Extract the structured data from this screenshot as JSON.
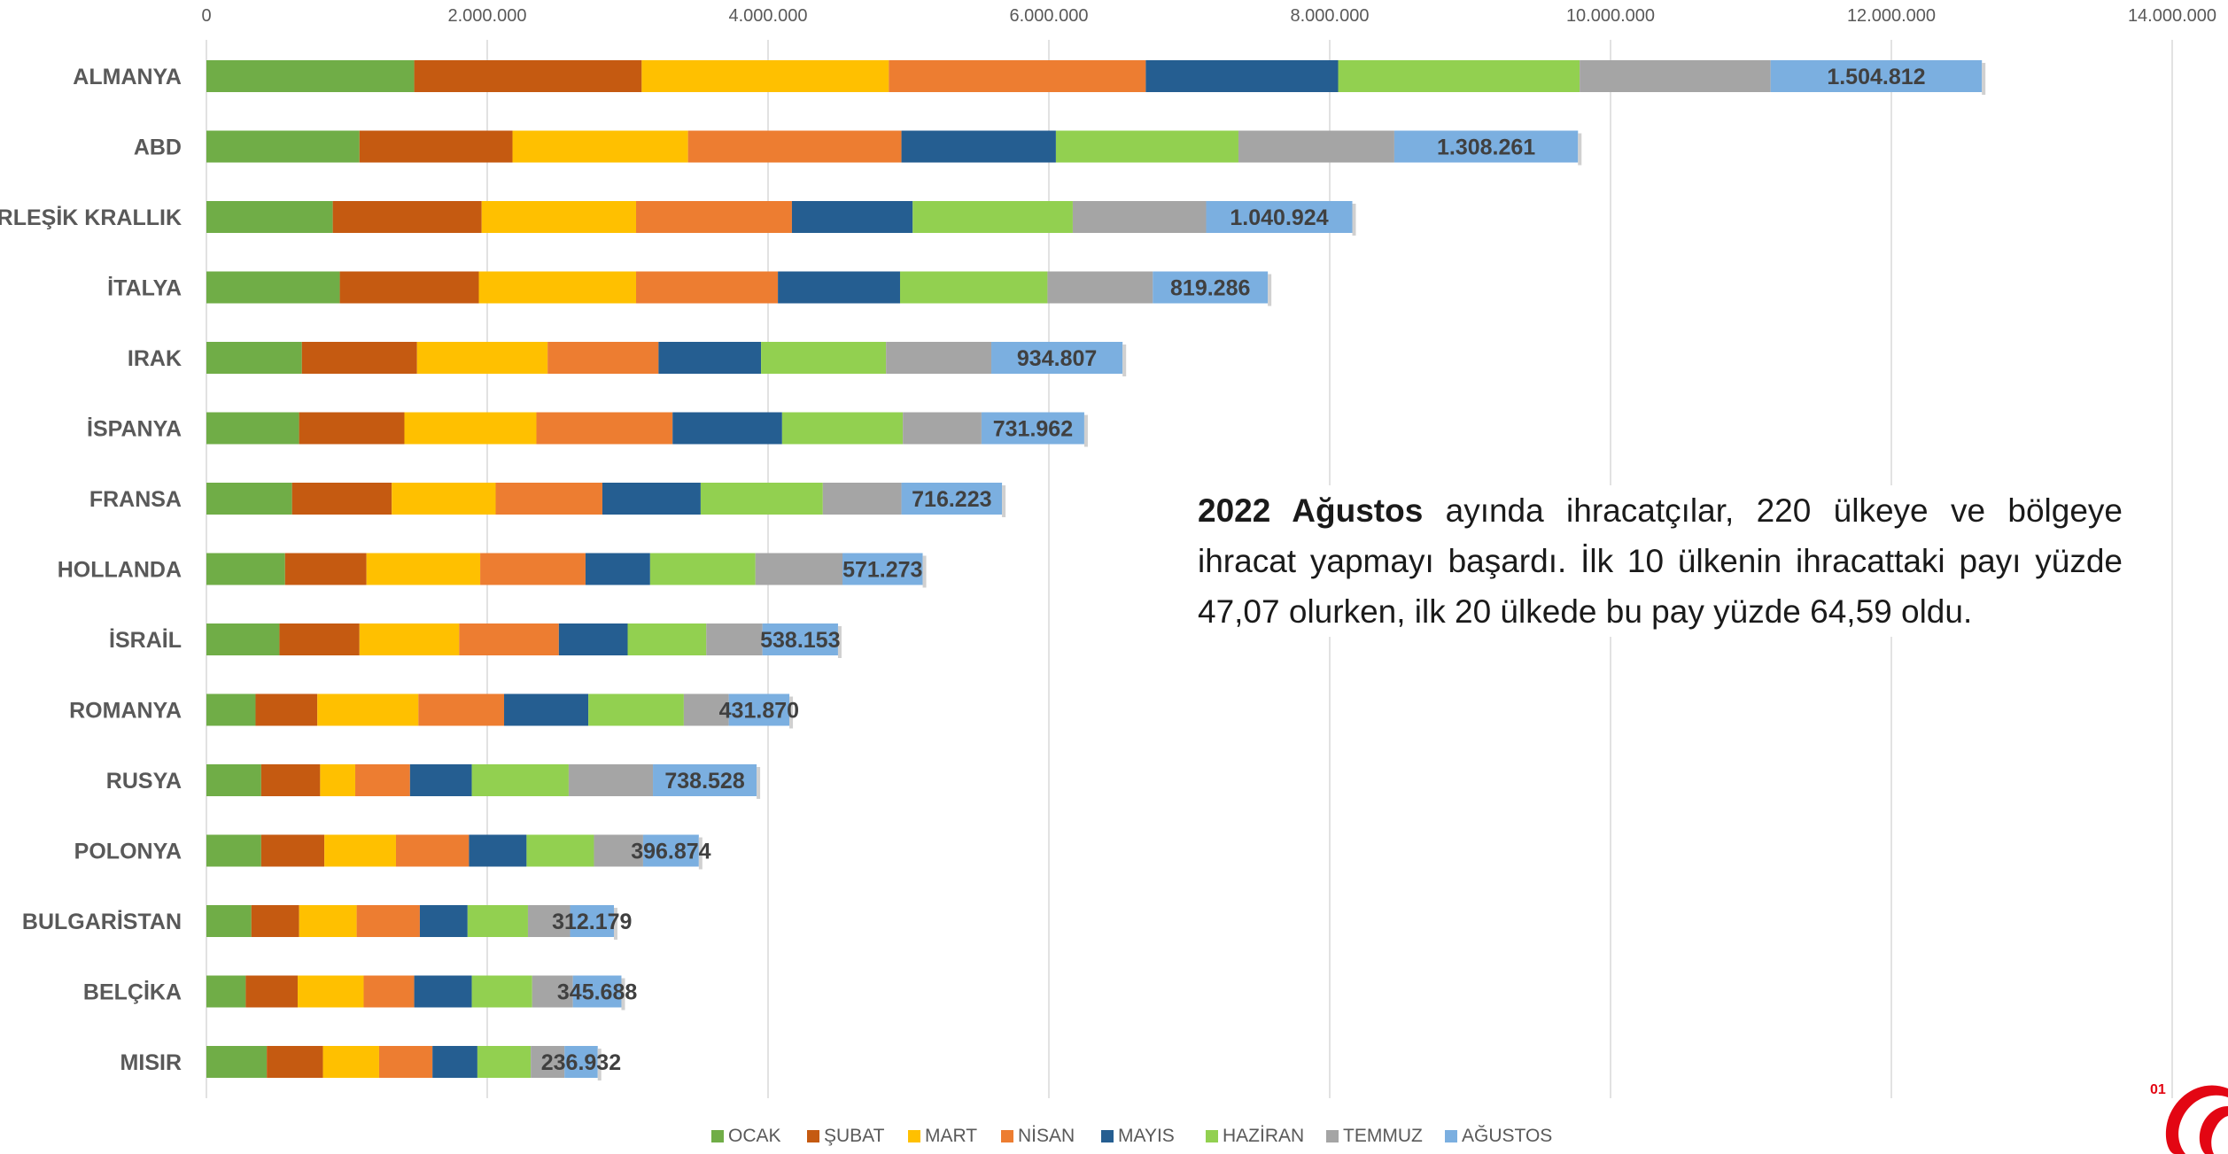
{
  "note": {
    "bold": "2022 Ağustos",
    "text": " ayında ihracatçılar, 220 ülkeye ve bölgeye ihracat yapmayı başardı. İlk 10 ülkenin ihracattaki payı yüzde 47,07 olurken, ilk 20 ülkede bu pay yüzde 64,59 oldu."
  },
  "logo": {
    "number": "01",
    "color": "#e30613"
  },
  "chart_data": {
    "type": "bar",
    "orientation": "horizontal",
    "stacked": true,
    "categories": [
      "ALMANYA",
      "ABD",
      "BİRLEŞİK KRALLIK",
      "İTALYA",
      "IRAK",
      "İSPANYA",
      "FRANSA",
      "HOLLANDA",
      "İSRAİL",
      "ROMANYA",
      "RUSYA",
      "POLONYA",
      "BULGARİSTAN",
      "BELÇİKA",
      "MISIR"
    ],
    "series": [
      {
        "name": "OCAK",
        "color": "#70ad47",
        "values": [
          1480000,
          1090000,
          900000,
          950000,
          680000,
          660000,
          610000,
          560000,
          520000,
          350000,
          390000,
          390000,
          320000,
          280000,
          430000
        ]
      },
      {
        "name": "ŞUBAT",
        "color": "#c55a11",
        "values": [
          1620000,
          1090000,
          1060000,
          990000,
          820000,
          750000,
          710000,
          580000,
          570000,
          440000,
          420000,
          450000,
          340000,
          370000,
          400000
        ]
      },
      {
        "name": "MART",
        "color": "#ffc000",
        "values": [
          1760000,
          1250000,
          1100000,
          1120000,
          930000,
          940000,
          740000,
          810000,
          710000,
          720000,
          250000,
          510000,
          410000,
          470000,
          400000
        ]
      },
      {
        "name": "NİSAN",
        "color": "#ed7d31",
        "values": [
          1830000,
          1520000,
          1110000,
          1010000,
          790000,
          970000,
          760000,
          750000,
          710000,
          610000,
          390000,
          520000,
          450000,
          360000,
          380000
        ]
      },
      {
        "name": "MAYIS",
        "color": "#255e91",
        "values": [
          1370000,
          1100000,
          860000,
          870000,
          730000,
          780000,
          700000,
          460000,
          490000,
          600000,
          440000,
          410000,
          340000,
          410000,
          320000
        ]
      },
      {
        "name": "HAZİRAN",
        "color": "#92d050",
        "values": [
          1720000,
          1300000,
          1140000,
          1050000,
          890000,
          860000,
          870000,
          750000,
          560000,
          680000,
          690000,
          480000,
          430000,
          430000,
          380000
        ]
      },
      {
        "name": "TEMMUZ",
        "color": "#a5a5a5",
        "values": [
          1360000,
          1110000,
          950000,
          750000,
          750000,
          560000,
          560000,
          620000,
          400000,
          320000,
          600000,
          350000,
          300000,
          290000,
          240000
        ]
      },
      {
        "name": "AĞUSTOS",
        "color": "#7bafe0",
        "values": [
          1504812,
          1308261,
          1040924,
          819286,
          934807,
          731962,
          716223,
          571273,
          538153,
          431870,
          738528,
          396874,
          312179,
          345688,
          236932
        ]
      }
    ],
    "data_labels": [
      "1.504.812",
      "1.308.261",
      "1.040.924",
      "819.286",
      "934.807",
      "731.962",
      "716.223",
      "571.273",
      "538.153",
      "431.870",
      "738.528",
      "396.874",
      "312.179",
      "345.688",
      "236.932"
    ],
    "xlim": [
      0,
      14000000
    ],
    "xticks": [
      0,
      2000000,
      4000000,
      6000000,
      8000000,
      10000000,
      12000000,
      14000000
    ],
    "xtick_labels": [
      "0",
      "2.000.000",
      "4.000.000",
      "6.000.000",
      "8.000.000",
      "10.000.000",
      "12.000.000",
      "14.000.000"
    ],
    "xaxis_position": "top",
    "grid": true,
    "legend_position": "bottom"
  }
}
